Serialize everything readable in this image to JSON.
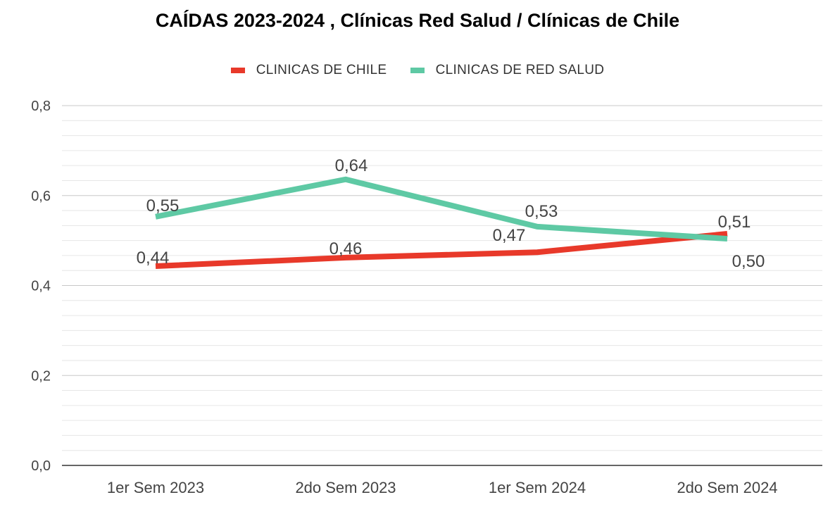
{
  "chart_data": {
    "type": "line",
    "title": "CAÍDAS 2023-2024 , Clínicas Red Salud / Clínicas de Chile",
    "xlabel": "",
    "ylabel": "",
    "categories": [
      "1er Sem 2023",
      "2do Sem 2023",
      "1er Sem 2024",
      "2do Sem 2024"
    ],
    "ylim": [
      0,
      0.8
    ],
    "yticks": [
      0,
      0.2,
      0.4,
      0.6,
      0.8
    ],
    "ytick_labels": [
      "0,0",
      "0,2",
      "0,4",
      "0,6",
      "0,8"
    ],
    "grid": true,
    "legend_position": "top",
    "series": [
      {
        "name": "CLINICAS DE CHILE",
        "color": "#e8392a",
        "values": [
          0.443,
          0.462,
          0.474,
          0.515
        ],
        "data_labels": [
          "0,44",
          "0,46",
          "0,47",
          "0,51"
        ]
      },
      {
        "name": "CLINICAS DE RED SALUD",
        "color": "#5ec9a4",
        "values": [
          0.553,
          0.636,
          0.531,
          0.504
        ],
        "data_labels": [
          "0,55",
          "0,64",
          "0,53",
          "0,50"
        ]
      }
    ]
  }
}
